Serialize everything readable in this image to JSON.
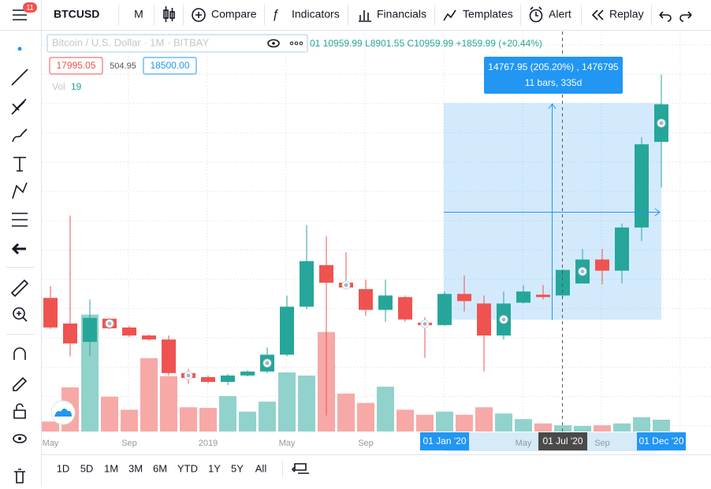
{
  "toolbar": {
    "badge": "11",
    "symbol": "BTCUSD",
    "interval": "M",
    "buttons": [
      "Compare",
      "Indicators",
      "Financials",
      "Templates",
      "Alert",
      "Replay"
    ]
  },
  "legend": {
    "title": "Bitcoin / U.S. Dollar · 1M · BITBAY",
    "ohlc": "01 10959.99 L8901.55 C10959.99 +1859.99 (+20.44%)",
    "sell": "17995.05",
    "spread": "504.95",
    "buy": "18500.00",
    "volume_label": "Vol",
    "volume_value": 19
  },
  "measure": {
    "line1": "14767.95 (205.20%) , 1476795",
    "line2": "11 bars, 335d"
  },
  "ranges": [
    "1D",
    "5D",
    "1M",
    "3M",
    "6M",
    "YTD",
    "1Y",
    "5Y",
    "All"
  ],
  "chart_data": {
    "type": "candlestick",
    "categories": [
      "May",
      null,
      null,
      null,
      "Sep",
      null,
      null,
      null,
      "2019",
      null,
      null,
      null,
      "May",
      null,
      null,
      null,
      "Sep",
      null,
      null,
      null,
      "01 Jan '20",
      null,
      null,
      null,
      "May",
      null,
      "01 Jul '20",
      null,
      "Sep",
      null,
      null,
      "01 Dec '20"
    ],
    "open": [
      8969,
      7250,
      6015,
      7573,
      6982,
      6445,
      6176,
      3921,
      3653,
      3330,
      3760,
      4028,
      5156,
      8378,
      11171,
      9989,
      9560,
      8163,
      9023,
      7304,
      7143,
      9237,
      8593,
      6445,
      8647,
      9184,
      9130,
      9935,
      11546,
      10795,
      13694,
      19440
    ],
    "high": [
      9774,
      14500,
      8861,
      7626,
      7089,
      6500,
      6445,
      4190,
      3760,
      3867,
      4100,
      5639,
      9130,
      13856,
      13104,
      12030,
      10204,
      10204,
      9130,
      7680,
      9398,
      10472,
      9130,
      9398,
      9828,
      9828,
      10902,
      12245,
      12245,
      13963,
      19763,
      23951
    ],
    "low": [
      6875,
      5049,
      5049,
      6875,
      6338,
      6100,
      3760,
      3223,
      3223,
      3116,
      3700,
      3921,
      5049,
      8200,
      1075,
      9560,
      7787,
      7358,
      7358,
      4941,
      7089,
      8056,
      4028,
      6176,
      8593,
      8861,
      9023,
      9935,
      9882,
      9935,
      12782,
      16379
    ],
    "close": [
      6982,
      5908,
      7626,
      6928,
      6445,
      6176,
      3921,
      3599,
      3330,
      3760,
      4028,
      5156,
      8378,
      11439,
      9989,
      9667,
      8163,
      9130,
      7519,
      7143,
      9237,
      8754,
      6445,
      8593,
      9398,
      9023,
      10848,
      11546,
      10795,
      13694,
      19279,
      21964
    ],
    "volume": [
      16,
      71,
      188,
      56,
      35,
      118,
      89,
      39,
      38,
      57,
      32,
      48,
      95,
      90,
      160,
      61,
      46,
      72,
      35,
      27,
      32,
      27,
      39,
      29,
      20,
      13,
      10,
      9,
      10,
      13,
      23,
      19
    ],
    "ylim": [
      0,
      26850
    ],
    "vol_ylim": [
      0,
      314
    ],
    "up_color": "#26a69a",
    "down_color": "#ef5350",
    "up_volume_color": "#92d2cc",
    "down_volume_color": "#f7a9a7"
  }
}
